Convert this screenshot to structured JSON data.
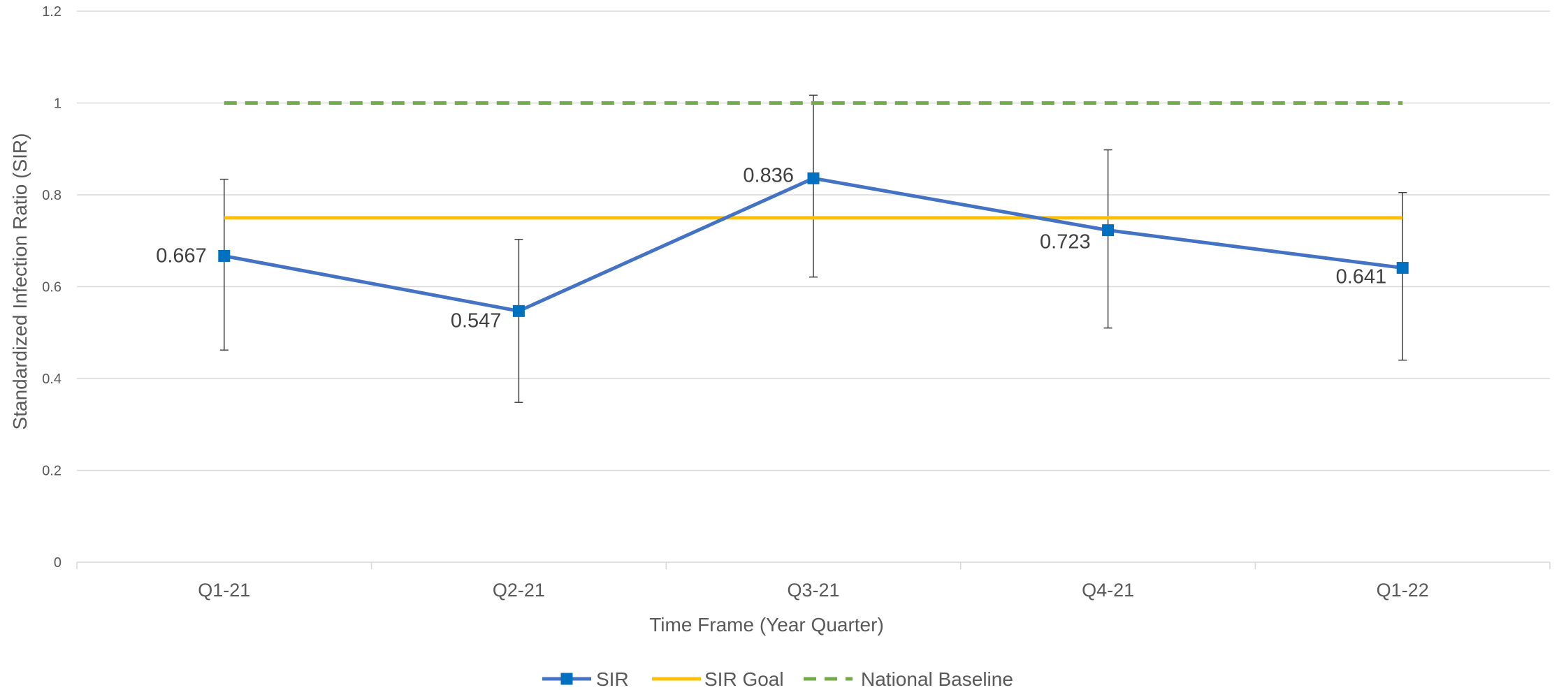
{
  "chart_data": {
    "type": "line",
    "title": "",
    "xlabel": "Time Frame (Year Quarter)",
    "ylabel": "Standardized Infection Ratio (SIR)",
    "categories": [
      "Q1-21",
      "Q2-21",
      "Q3-21",
      "Q4-21",
      "Q1-22"
    ],
    "ylim": [
      0,
      1.2
    ],
    "yticks": [
      0,
      0.2,
      0.4,
      0.6,
      0.8,
      1,
      1.2
    ],
    "ytick_labels": [
      "0",
      "0.2",
      "0.4",
      "0.6",
      "0.8",
      "1",
      "1.2"
    ],
    "grid": true,
    "legend_position": "bottom",
    "series": [
      {
        "name": "SIR",
        "values": [
          0.667,
          0.547,
          0.836,
          0.723,
          0.641
        ],
        "data_labels": [
          "0.667",
          "0.547",
          "0.836",
          "0.723",
          "0.641"
        ],
        "error_low": [
          0.462,
          0.348,
          0.621,
          0.51,
          0.44
        ],
        "error_high": [
          0.834,
          0.703,
          1.017,
          0.898,
          0.805
        ],
        "color": "#4472C4",
        "marker_color": "#0070C0",
        "marker": "square",
        "style": "solid"
      },
      {
        "name": "SIR Goal",
        "values": [
          0.75,
          0.75,
          0.75,
          0.75,
          0.75
        ],
        "color": "#FFC000",
        "style": "solid"
      },
      {
        "name": "National Baseline",
        "values": [
          1,
          1,
          1,
          1,
          1
        ],
        "color": "#70AD47",
        "style": "dashed"
      }
    ]
  }
}
